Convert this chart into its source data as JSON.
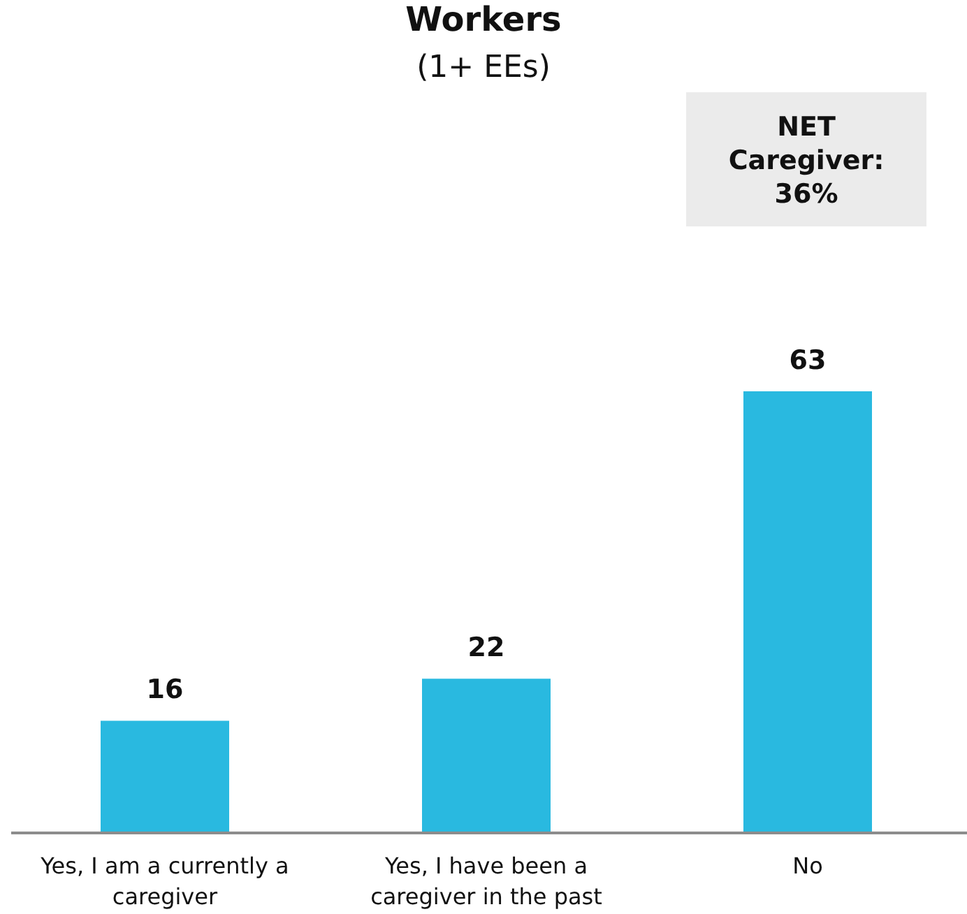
{
  "chart_data": {
    "type": "bar",
    "title": "Workers",
    "subtitle": "(1+ EEs)",
    "categories": [
      "Yes, I am a currently a caregiver",
      "Yes, I have been a caregiver in the past",
      "No"
    ],
    "values": [
      16,
      22,
      63
    ],
    "color": "#29b9e0",
    "data_labels": true,
    "annotations": [
      "NET Caregiver: 36%"
    ]
  }
}
